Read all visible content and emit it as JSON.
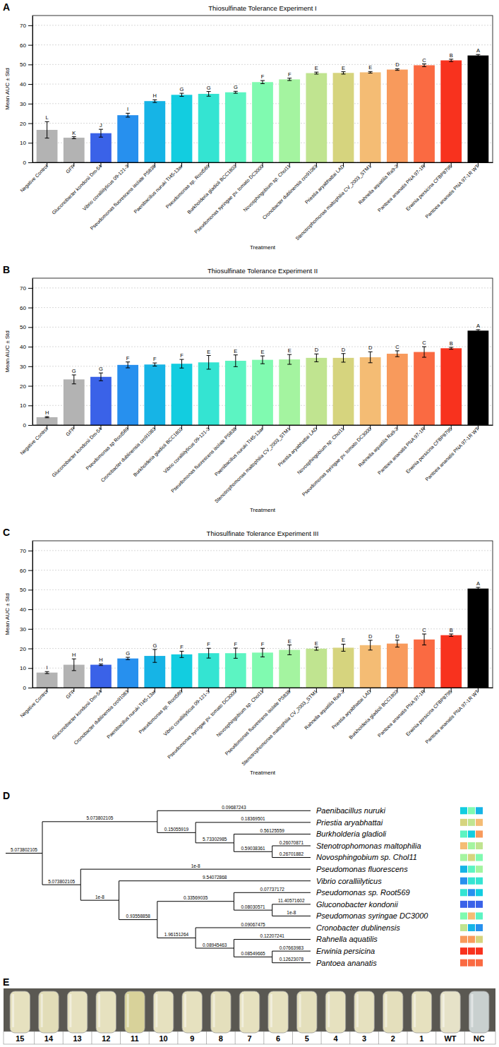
{
  "chart_data": [
    {
      "type": "bar",
      "panel_label": "A",
      "title": "Thiosulfinate Tolerance Experiment I",
      "x_label": "Treatment",
      "y_label": "Mean AUC ± Std",
      "categories": [
        "Negative Control",
        "GFP",
        "Gluconobacter kondonii Dm-54",
        "Vibrio coralliilyticus 09-121-3",
        "Pseudomonas fluorescens isolate PS838",
        "Paenibacillus nuruki TI45-13ar",
        "Pseudomonas sp. Root569",
        "Burkholderia gladioli BCC1802",
        "Pseudomonas syringae pv. tomato DC3000",
        "Novosphingobium sp. Chol11",
        "Cronobacter dublinensis cro91083",
        "Priestia aryabhattai LAD",
        "Stenotrophomonas maltophilia CV_2003_STM1",
        "Rahnella aquatilis Ra9-2",
        "Pantoea ananatis PNA 97-1R",
        "Erwinia persicina CFBP8795",
        "Pantoea ananatis PNA 97-1R WT"
      ],
      "values": [
        16.6,
        12.6,
        14.9,
        24.1,
        31.3,
        34.5,
        35.0,
        35.8,
        41.0,
        42.4,
        45.6,
        45.7,
        46.0,
        47.4,
        49.6,
        52.1,
        54.6
      ],
      "errors": [
        4.2,
        0.5,
        2.0,
        1.0,
        0.7,
        0.8,
        1.2,
        0.5,
        0.8,
        0.6,
        0.5,
        0.6,
        0.4,
        0.4,
        0.7,
        0.6,
        0.5
      ],
      "annotations": [
        "L",
        "K",
        "J",
        "I",
        "H",
        "G",
        "G",
        "G",
        "F",
        "F",
        "E",
        "E",
        "E",
        "D",
        "C",
        "B",
        "A"
      ],
      "colors": [
        "#b3b3b3",
        "#b3b3b3",
        "#3a62e8",
        "#2790ee",
        "#16b4e6",
        "#12cde0",
        "#34e4d2",
        "#5cf4c2",
        "#80fab0",
        "#a4f4a0",
        "#c0e490",
        "#d6d47e",
        "#f4bc74",
        "#f89a5c",
        "#fa6a42",
        "#f8321e",
        "#000000"
      ],
      "ylim": [
        0,
        75
      ],
      "yticks": [
        0,
        10,
        20,
        30,
        40,
        50,
        60,
        70
      ],
      "grid": true
    },
    {
      "type": "bar",
      "panel_label": "B",
      "title": "Thiosulfinate Tolerance Experiment II",
      "x_label": "Treatment",
      "y_label": "Mean AUC ± Std",
      "categories": [
        "Negative Control",
        "GFP",
        "Gluconobacter kondonii Dm-54",
        "Pseudomonas sp Root569",
        "Cronobacter dublinensis cro91083",
        "Burkholderia gladioli BCC1802",
        "Vibrio coralliilyticus 09-121-3",
        "Pseudomonas fluorescens isolate PS838",
        "Paenibacillus nuruki TI45-13ar",
        "Stenotrophomonas maltophilia CV_2003_STM1",
        "Priestia aryabhattai LAD",
        "Novosphingobium sp. Chol11",
        "Pseudomonas syringae pv. tomato DC3000",
        "Rahnella aquatilis Ra9-2",
        "Pantoea ananatis PNA 97-1R",
        "Erwinia persicina CFBP8795",
        "Pantoea ananatis PNA 97-1R WT"
      ],
      "values": [
        4.0,
        23.3,
        24.6,
        30.7,
        30.9,
        31.3,
        32.0,
        32.8,
        33.3,
        33.5,
        34.3,
        34.3,
        34.6,
        36.4,
        37.3,
        39.2,
        48.2
      ],
      "errors": [
        0.3,
        2.3,
        2.0,
        1.5,
        0.8,
        2.2,
        3.5,
        3.0,
        2.0,
        2.5,
        2.0,
        2.2,
        2.8,
        1.5,
        2.7,
        0.5,
        0.5
      ],
      "annotations": [
        "H",
        "G",
        "G",
        "F",
        "F",
        "F",
        "E",
        "E",
        "E",
        "E",
        "D",
        "D",
        "D",
        "C",
        "C",
        "B",
        "A"
      ],
      "colors": [
        "#b3b3b3",
        "#b3b3b3",
        "#3a62e8",
        "#2790ee",
        "#16b4e6",
        "#12cde0",
        "#34e4d2",
        "#5cf4c2",
        "#80fab0",
        "#a4f4a0",
        "#c0e490",
        "#d6d47e",
        "#f4bc74",
        "#f89a5c",
        "#fa6a42",
        "#f8321e",
        "#000000"
      ],
      "ylim": [
        0,
        75
      ],
      "yticks": [
        0,
        10,
        20,
        30,
        40,
        50,
        60,
        70
      ],
      "grid": true
    },
    {
      "type": "bar",
      "panel_label": "C",
      "title": "Thiosulfinate Tolerance Experiment III",
      "x_label": "Treatment",
      "y_label": "Mean AUC ± Std",
      "categories": [
        "Negative Control",
        "GFP",
        "Gluconobacter kondonii Dm-54",
        "Cronobacter dublinensis cro91083",
        "Paenibacillus nuruki TI45-13ar",
        "Pseudomonas sp. Root569",
        "Vibrio coralliilyticus 09-121-3",
        "Pseudomonas syringae pv. tomato DC3000",
        "Novosphingobium sp. Chol11",
        "Pseudomonas fluorescens isolate PS838",
        "Stenotrophomonas maltophilia CV_2003_STM1",
        "Rahnella aquatilis Ra9-2",
        "Priestia aryabhattai LAD",
        "Burkholderia gladioli BCC1802",
        "Pantoea ananatis PNA 97-1R",
        "Erwinia persicina CFBP8795",
        "Pantoea ananatis PNA 97-1R WT"
      ],
      "values": [
        7.7,
        11.7,
        11.7,
        14.9,
        16.2,
        17.0,
        17.6,
        17.6,
        17.9,
        19.3,
        19.9,
        20.4,
        21.7,
        22.5,
        24.6,
        26.8,
        50.6
      ],
      "errors": [
        0.5,
        3.0,
        0.4,
        0.6,
        3.3,
        1.6,
        2.5,
        2.6,
        2.2,
        2.5,
        0.8,
        1.8,
        2.5,
        1.8,
        2.8,
        0.6,
        0.6
      ],
      "annotations": [
        "I",
        "H",
        "H",
        "G",
        "G",
        "F",
        "F",
        "F",
        "F",
        "E",
        "E",
        "E",
        "D",
        "D",
        "C",
        "B",
        "A"
      ],
      "colors": [
        "#b3b3b3",
        "#b3b3b3",
        "#3a62e8",
        "#2790ee",
        "#16b4e6",
        "#12cde0",
        "#34e4d2",
        "#5cf4c2",
        "#80fab0",
        "#a4f4a0",
        "#c0e490",
        "#d6d47e",
        "#f4bc74",
        "#f89a5c",
        "#fa6a42",
        "#f8321e",
        "#000000"
      ],
      "ylim": [
        0,
        75
      ],
      "yticks": [
        0,
        10,
        20,
        30,
        40,
        50,
        60,
        70
      ],
      "grid": true
    }
  ],
  "tree": {
    "panel_label": "D",
    "root": {
      "branch_length": "5.073802105",
      "children": [
        {
          "branch_length": "5.073802105",
          "children": [
            {
              "name": "Paenibacillus nuruki",
              "branch_length": "0.09687243",
              "colors": [
                "#12cde0",
                "#80fab0",
                "#16b4e6"
              ]
            },
            {
              "branch_length": "0.15055919",
              "children": [
                {
                  "name": "Priestia aryabhattai",
                  "branch_length": "0.18369501",
                  "colors": [
                    "#d6d47e",
                    "#c0e490",
                    "#f4bc74"
                  ]
                },
                {
                  "branch_length": "5.73302985",
                  "children": [
                    {
                      "name": "Burkholderia gladioli",
                      "branch_length": "0.56125559",
                      "colors": [
                        "#5cf4c2",
                        "#12cde0",
                        "#f89a5c"
                      ]
                    },
                    {
                      "branch_length": "0.59038361",
                      "children": [
                        {
                          "name": "Stenotrophomonas maltophilia",
                          "branch_length": "0.26070871",
                          "colors": [
                            "#f4bc74",
                            "#a4f4a0",
                            "#c0e490"
                          ]
                        },
                        {
                          "name": "Novosphingobium sp. Chol11",
                          "branch_length": "0.26701882",
                          "colors": [
                            "#a4f4a0",
                            "#d6d47e",
                            "#80fab0"
                          ]
                        }
                      ]
                    }
                  ]
                }
              ]
            }
          ]
        },
        {
          "branch_length": "5.073802105",
          "children": [
            {
              "name": "Pseudomonas fluorescens",
              "branch_length": "1e-8",
              "colors": [
                "#16b4e6",
                "#5cf4c2",
                "#a4f4a0"
              ]
            },
            {
              "branch_length": "1e-8",
              "children": [
                {
                  "name": "Vibrio coralliilyticus",
                  "branch_length": "9.54072868",
                  "colors": [
                    "#2790ee",
                    "#34e4d2",
                    "#34e4d2"
                  ]
                },
                {
                  "branch_length": "0.93558858",
                  "children": [
                    {
                      "branch_length": "0.33569035",
                      "children": [
                        {
                          "name": "Pseudomonas sp. Root569",
                          "branch_length": "0.07737172",
                          "colors": [
                            "#34e4d2",
                            "#2790ee",
                            "#12cde0"
                          ]
                        },
                        {
                          "branch_length": "0.08030571",
                          "children": [
                            {
                              "name": "Gluconobacter kondonii",
                              "branch_length": "11.40571602",
                              "colors": [
                                "#3a62e8",
                                "#3a62e8",
                                "#3a62e8"
                              ]
                            },
                            {
                              "name": "Pseudomonas syringae DC3000",
                              "branch_length": "1e-8",
                              "colors": [
                                "#80fab0",
                                "#f4bc74",
                                "#5cf4c2"
                              ]
                            }
                          ]
                        }
                      ]
                    },
                    {
                      "branch_length": "1.96151264",
                      "children": [
                        {
                          "name": "Cronobacter dublinensis",
                          "branch_length": "0.09067475",
                          "colors": [
                            "#c0e490",
                            "#16b4e6",
                            "#2790ee"
                          ]
                        },
                        {
                          "branch_length": "0.08945463",
                          "children": [
                            {
                              "name": "Rahnella aquatilis",
                              "branch_length": "0.12207241",
                              "colors": [
                                "#f89a5c",
                                "#f89a5c",
                                "#d6d47e"
                              ]
                            },
                            {
                              "branch_length": "0.08549665",
                              "children": [
                                {
                                  "name": "Erwinia persicina",
                                  "branch_length": "0.07663983",
                                  "colors": [
                                    "#f8321e",
                                    "#f8321e",
                                    "#f8321e"
                                  ]
                                },
                                {
                                  "name": "Pantoea ananatis",
                                  "branch_length": "0.12623078",
                                  "colors": [
                                    "#fa6a42",
                                    "#fa6a42",
                                    "#fa6a42"
                                  ]
                                }
                              ]
                            }
                          ]
                        }
                      ]
                    }
                  ]
                }
              ]
            }
          ]
        }
      ]
    }
  },
  "photo": {
    "panel_label": "E",
    "labels": [
      "15",
      "14",
      "13",
      "12",
      "11",
      "10",
      "9",
      "8",
      "7",
      "6",
      "5",
      "4",
      "3",
      "2",
      "1",
      "WT",
      "NC"
    ],
    "colors": [
      "#e6e1bf",
      "#e2ddb8",
      "#e6e1bf",
      "#e6e1bf",
      "#d8d29a",
      "#e6e1bf",
      "#e6e1bf",
      "#e4dfbc",
      "#e6e1bf",
      "#e6e1bf",
      "#e4dfbc",
      "#e6e1bf",
      "#e6e1bf",
      "#e4dfbc",
      "#e6e1bf",
      "#e6e2c8",
      "#c9d0cf"
    ]
  }
}
